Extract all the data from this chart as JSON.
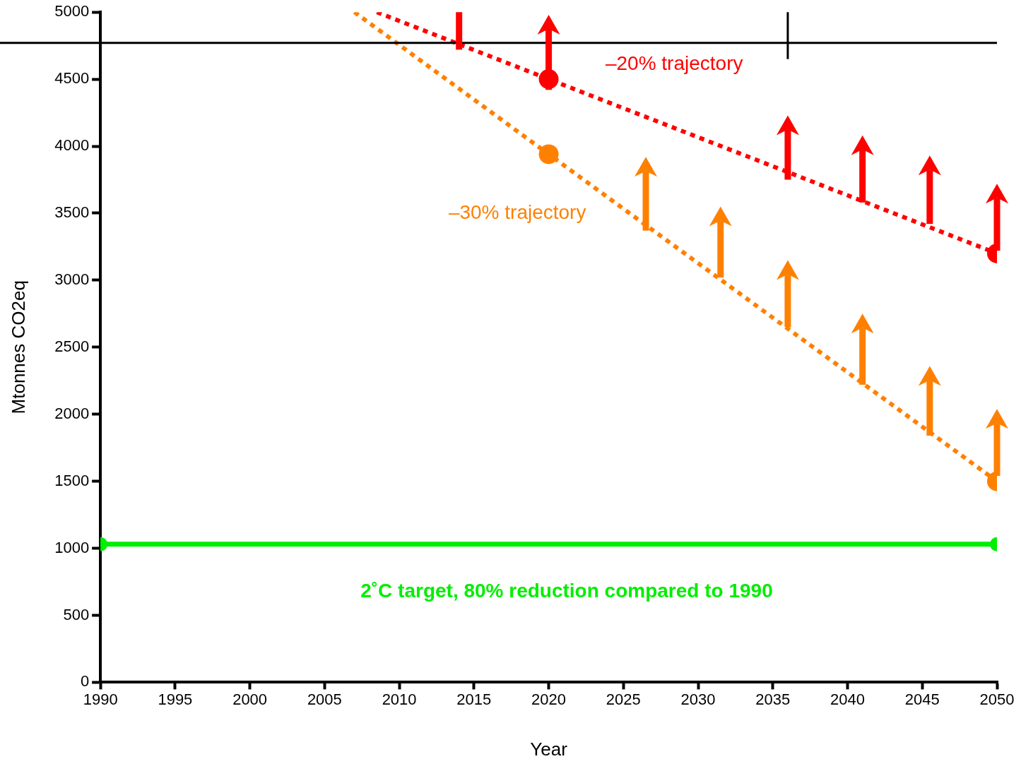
{
  "chart_data": {
    "type": "line",
    "xlabel": "Year",
    "ylabel": "Mtonnes CO2eq",
    "xlim": [
      1990,
      2050
    ],
    "xticks": [
      1990,
      1995,
      2000,
      2005,
      2010,
      2015,
      2020,
      2025,
      2030,
      2035,
      2040,
      2045,
      2050
    ],
    "ylim": [
      0,
      5000
    ],
    "yticks": [
      0,
      500,
      1000,
      1500,
      2000,
      2500,
      3000,
      3500,
      4000,
      4500,
      5000
    ],
    "series": [
      {
        "color": "#ff0000",
        "x": [
          2008.5,
          2020,
          2050
        ],
        "values": [
          5000,
          4500,
          3200
        ],
        "line_style": "dotted"
      },
      {
        "color": "#ff8000",
        "x": [
          2007,
          2020,
          2050
        ],
        "values": [
          5000,
          3940,
          1500
        ],
        "line_style": "dotted"
      },
      {
        "color": "#00ee00",
        "x": [
          1990,
          2050
        ],
        "values": [
          1030,
          1030
        ],
        "line_style": "solid"
      }
    ],
    "marker": "circle",
    "grid": false,
    "legend": false,
    "ref_lines": [
      {
        "axis": "y",
        "value": 4770,
        "color": "#000000"
      }
    ],
    "annotations": [
      "–20% trajectory",
      "–30% trajectory",
      "2˚C target, 80% reduction compared to 1990"
    ]
  }
}
